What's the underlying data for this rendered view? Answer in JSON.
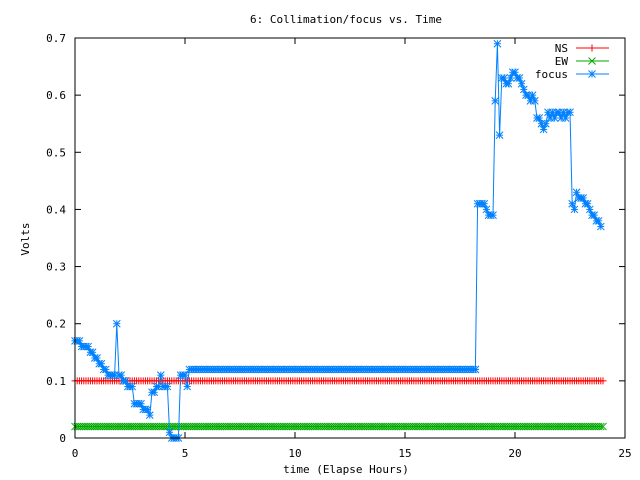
{
  "chart_data": {
    "type": "line",
    "title": "6: Collimation/focus vs. Time",
    "xlabel": "time (Elapse Hours)",
    "ylabel": "Volts",
    "xlim": [
      0,
      25
    ],
    "ylim": [
      0,
      0.7
    ],
    "xticks": [
      0,
      5,
      10,
      15,
      20,
      25
    ],
    "yticks": [
      0,
      0.1,
      0.2,
      0.3,
      0.4,
      0.5,
      0.6,
      0.7
    ],
    "xtick_labels": [
      "0",
      "5",
      "10",
      "15",
      "20",
      "25"
    ],
    "ytick_labels": [
      "0",
      "0.1",
      "0.2",
      "0.3",
      "0.4",
      "0.5",
      "0.6",
      "0.7"
    ],
    "grid": false,
    "legend_position": "top-right",
    "series": [
      {
        "name": "NS",
        "color": "#ff0000",
        "marker": "plus",
        "x_range": [
          0,
          24
        ],
        "constant": 0.1
      },
      {
        "name": "EW",
        "color": "#00aa00",
        "marker": "cross",
        "x_range": [
          0,
          24
        ],
        "constant": 0.02
      },
      {
        "name": "focus",
        "color": "#0080ff",
        "marker": "star",
        "points": [
          [
            0.0,
            0.17
          ],
          [
            0.1,
            0.17
          ],
          [
            0.2,
            0.17
          ],
          [
            0.3,
            0.16
          ],
          [
            0.4,
            0.16
          ],
          [
            0.5,
            0.16
          ],
          [
            0.6,
            0.16
          ],
          [
            0.7,
            0.15
          ],
          [
            0.8,
            0.15
          ],
          [
            0.9,
            0.14
          ],
          [
            1.0,
            0.14
          ],
          [
            1.1,
            0.13
          ],
          [
            1.2,
            0.13
          ],
          [
            1.3,
            0.12
          ],
          [
            1.4,
            0.12
          ],
          [
            1.5,
            0.11
          ],
          [
            1.6,
            0.11
          ],
          [
            1.7,
            0.11
          ],
          [
            1.8,
            0.11
          ],
          [
            1.9,
            0.2
          ],
          [
            2.0,
            0.11
          ],
          [
            2.1,
            0.11
          ],
          [
            2.2,
            0.1
          ],
          [
            2.3,
            0.1
          ],
          [
            2.4,
            0.09
          ],
          [
            2.5,
            0.09
          ],
          [
            2.6,
            0.09
          ],
          [
            2.7,
            0.06
          ],
          [
            2.8,
            0.06
          ],
          [
            2.9,
            0.06
          ],
          [
            3.0,
            0.06
          ],
          [
            3.1,
            0.05
          ],
          [
            3.2,
            0.05
          ],
          [
            3.3,
            0.05
          ],
          [
            3.4,
            0.04
          ],
          [
            3.5,
            0.08
          ],
          [
            3.6,
            0.08
          ],
          [
            3.7,
            0.09
          ],
          [
            3.8,
            0.09
          ],
          [
            3.9,
            0.11
          ],
          [
            4.0,
            0.09
          ],
          [
            4.1,
            0.09
          ],
          [
            4.2,
            0.09
          ],
          [
            4.3,
            0.01
          ],
          [
            4.4,
            0.0
          ],
          [
            4.5,
            0.0
          ],
          [
            4.6,
            0.0
          ],
          [
            4.7,
            0.0
          ],
          [
            4.8,
            0.11
          ],
          [
            4.9,
            0.11
          ],
          [
            5.0,
            0.11
          ],
          [
            5.1,
            0.09
          ],
          [
            5.2,
            0.12
          ],
          [
            5.3,
            0.12
          ],
          [
            5.4,
            0.12
          ],
          [
            18.2,
            0.12
          ],
          [
            18.3,
            0.41
          ],
          [
            18.4,
            0.41
          ],
          [
            18.5,
            0.41
          ],
          [
            18.6,
            0.41
          ],
          [
            18.7,
            0.4
          ],
          [
            18.8,
            0.39
          ],
          [
            18.9,
            0.39
          ],
          [
            19.0,
            0.39
          ],
          [
            19.1,
            0.59
          ],
          [
            19.2,
            0.69
          ],
          [
            19.3,
            0.53
          ],
          [
            19.4,
            0.63
          ],
          [
            19.5,
            0.63
          ],
          [
            19.6,
            0.62
          ],
          [
            19.7,
            0.62
          ],
          [
            19.8,
            0.63
          ],
          [
            19.9,
            0.64
          ],
          [
            20.0,
            0.64
          ],
          [
            20.1,
            0.63
          ],
          [
            20.2,
            0.63
          ],
          [
            20.3,
            0.62
          ],
          [
            20.4,
            0.61
          ],
          [
            20.5,
            0.6
          ],
          [
            20.6,
            0.6
          ],
          [
            20.7,
            0.59
          ],
          [
            20.8,
            0.6
          ],
          [
            20.9,
            0.59
          ],
          [
            21.0,
            0.56
          ],
          [
            21.1,
            0.56
          ],
          [
            21.2,
            0.55
          ],
          [
            21.3,
            0.54
          ],
          [
            21.4,
            0.55
          ],
          [
            21.5,
            0.57
          ],
          [
            21.6,
            0.56
          ],
          [
            21.7,
            0.57
          ],
          [
            21.8,
            0.56
          ],
          [
            21.9,
            0.57
          ],
          [
            22.0,
            0.57
          ],
          [
            22.1,
            0.56
          ],
          [
            22.2,
            0.57
          ],
          [
            22.3,
            0.56
          ],
          [
            22.4,
            0.57
          ],
          [
            22.5,
            0.57
          ],
          [
            22.6,
            0.41
          ],
          [
            22.7,
            0.4
          ],
          [
            22.8,
            0.43
          ],
          [
            22.9,
            0.42
          ],
          [
            23.0,
            0.42
          ],
          [
            23.1,
            0.42
          ],
          [
            23.2,
            0.41
          ],
          [
            23.3,
            0.41
          ],
          [
            23.4,
            0.4
          ],
          [
            23.5,
            0.39
          ],
          [
            23.6,
            0.39
          ],
          [
            23.7,
            0.38
          ],
          [
            23.8,
            0.38
          ],
          [
            23.9,
            0.37
          ]
        ]
      }
    ]
  }
}
